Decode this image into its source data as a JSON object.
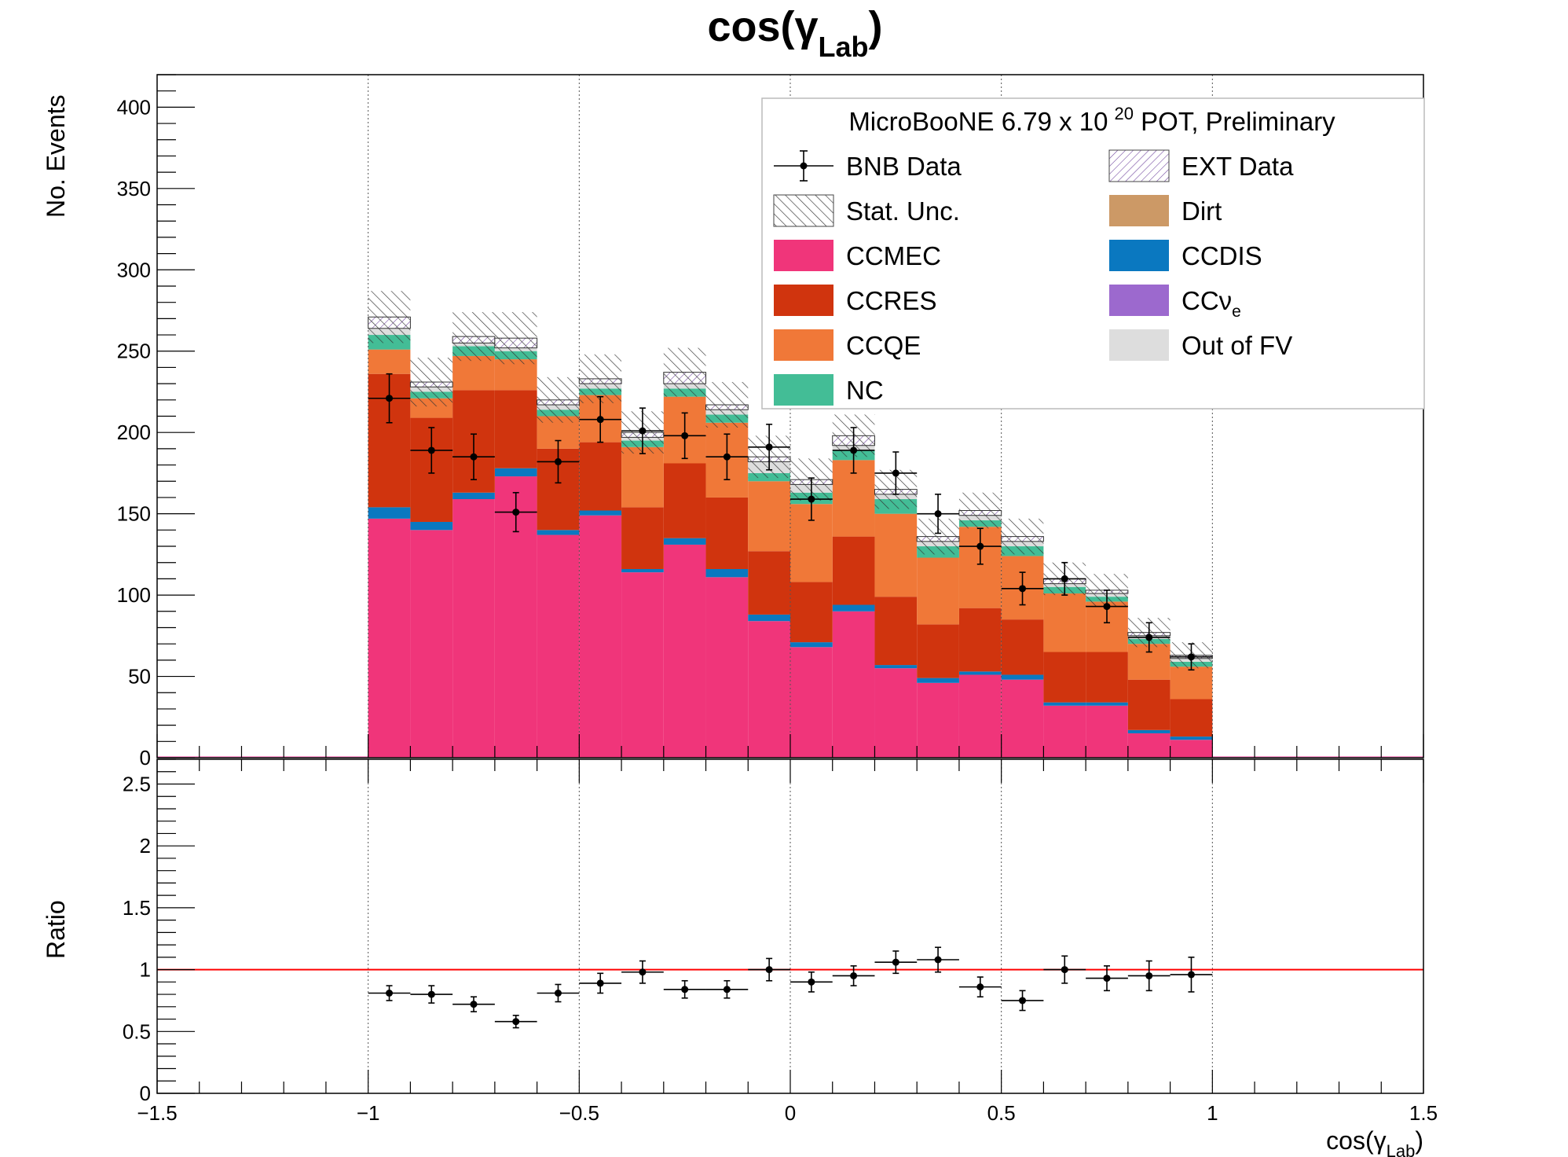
{
  "title": "cos(γ",
  "title_sub": "Lab",
  "title_close": ")",
  "xlabel": "cos(γ",
  "xlabel_sub": "Lab",
  "xlabel_close": ")",
  "legend": {
    "header_prefix": "MicroBooNE 6.79 x 10",
    "header_exp": "20",
    "header_suffix": " POT, Preliminary",
    "entries": [
      {
        "key": "data",
        "label": "BNB Data",
        "kind": "marker"
      },
      {
        "key": "ext",
        "label": "EXT Data",
        "kind": "hatch-ext"
      },
      {
        "key": "stat",
        "label": "Stat. Unc.",
        "kind": "hatch-stat"
      },
      {
        "key": "dirt",
        "label": "Dirt",
        "color": "#cc9966"
      },
      {
        "key": "ccmec",
        "label": "CCMEC",
        "color": "#f0357a"
      },
      {
        "key": "ccdis",
        "label": "CCDIS",
        "color": "#0a78c0"
      },
      {
        "key": "ccres",
        "label": "CCRES",
        "color": "#d0340e"
      },
      {
        "key": "ccnue",
        "label": "CCν",
        "label_sub": "e",
        "color": "#9c69ce"
      },
      {
        "key": "ccqe",
        "label": "CCQE",
        "color": "#f07838"
      },
      {
        "key": "outfv",
        "label": "Out of FV",
        "color": "#dddddd"
      },
      {
        "key": "nc",
        "label": "NC",
        "color": "#43bd96"
      }
    ]
  },
  "chart_data": [
    {
      "type": "bar",
      "stacked": true,
      "ylabel": "No. Events",
      "xlim": [
        -1.5,
        1.5
      ],
      "ylim": [
        0,
        420
      ],
      "yticks": [
        0,
        50,
        100,
        150,
        200,
        250,
        300,
        350,
        400
      ],
      "grid": "vertical",
      "legend_position": "top-right",
      "bin_edges": [
        -1.0,
        -0.9,
        -0.8,
        -0.7,
        -0.6,
        -0.5,
        -0.4,
        -0.3,
        -0.2,
        -0.1,
        0.0,
        0.1,
        0.2,
        0.3,
        0.4,
        0.5,
        0.6,
        0.7,
        0.8,
        0.9,
        1.0
      ],
      "series": [
        {
          "name": "CCMEC",
          "color": "#f0357a",
          "values": [
            147,
            140,
            159,
            173,
            137,
            149,
            114,
            131,
            111,
            84,
            68,
            90,
            55,
            46,
            51,
            48,
            32,
            32,
            15,
            11
          ]
        },
        {
          "name": "CCDIS",
          "color": "#0a78c0",
          "values": [
            7,
            5,
            4,
            5,
            3,
            3,
            2,
            4,
            5,
            4,
            3,
            4,
            2,
            3,
            2,
            3,
            2,
            2,
            2,
            2
          ]
        },
        {
          "name": "CCRES",
          "color": "#d0340e",
          "values": [
            82,
            64,
            63,
            48,
            50,
            42,
            38,
            46,
            44,
            39,
            37,
            42,
            42,
            33,
            39,
            34,
            31,
            31,
            31,
            23
          ]
        },
        {
          "name": "CCQE",
          "color": "#f07838",
          "values": [
            15,
            12,
            21,
            19,
            20,
            29,
            37,
            41,
            46,
            43,
            48,
            47,
            51,
            41,
            50,
            39,
            36,
            31,
            22,
            20
          ]
        },
        {
          "name": "NC",
          "color": "#43bd96",
          "values": [
            9,
            4,
            6,
            5,
            4,
            4,
            4,
            5,
            5,
            5,
            7,
            6,
            9,
            7,
            4,
            6,
            4,
            3,
            3,
            3
          ]
        },
        {
          "name": "Out of FV",
          "color": "#dddddd",
          "values": [
            4,
            3,
            2,
            2,
            3,
            3,
            2,
            3,
            3,
            7,
            5,
            3,
            3,
            3,
            3,
            3,
            2,
            2,
            2,
            2
          ]
        },
        {
          "name": "CCν",
          "color": "#9c69ce",
          "values": [
            0,
            0,
            0,
            0,
            0,
            0,
            0,
            0,
            0,
            0,
            0,
            0,
            0,
            0,
            0,
            0,
            0,
            0,
            0,
            0
          ]
        },
        {
          "name": "Dirt",
          "color": "#cc9966",
          "values": [
            0,
            0,
            0,
            0,
            0,
            0,
            0,
            0,
            0,
            0,
            0,
            0,
            0,
            0,
            0,
            0,
            0,
            0,
            0,
            0
          ]
        },
        {
          "name": "EXT Data",
          "color": "#ffffff",
          "values": [
            7,
            3,
            4,
            6,
            3,
            3,
            3,
            7,
            3,
            3,
            3,
            6,
            3,
            3,
            3,
            3,
            3,
            2,
            2,
            2
          ]
        }
      ],
      "stat_unc_halfwidth": [
        16,
        15,
        15,
        16,
        14,
        15,
        13,
        15,
        14,
        13,
        13,
        13,
        12,
        11,
        11,
        11,
        10,
        10,
        9,
        8
      ],
      "data_points": {
        "name": "BNB Data",
        "x": [
          -0.95,
          -0.85,
          -0.75,
          -0.65,
          -0.55,
          -0.45,
          -0.35,
          -0.25,
          -0.15,
          -0.05,
          0.05,
          0.15,
          0.25,
          0.35,
          0.45,
          0.55,
          0.65,
          0.75,
          0.85,
          0.95
        ],
        "y": [
          221,
          189,
          185,
          151,
          182,
          208,
          201,
          198,
          185,
          191,
          159,
          189,
          175,
          150,
          130,
          104,
          110,
          93,
          74,
          62
        ],
        "yerr": [
          15,
          14,
          14,
          12,
          13,
          14,
          14,
          14,
          14,
          14,
          13,
          14,
          13,
          12,
          11,
          10,
          10,
          10,
          9,
          8
        ],
        "xerr": 0.05
      }
    },
    {
      "type": "scatter",
      "ylabel": "Ratio",
      "xlabel": "cos(γLab)",
      "xlim": [
        -1.5,
        1.5
      ],
      "ylim": [
        0,
        2.7
      ],
      "yticks": [
        0,
        0.5,
        1,
        1.5,
        2,
        2.5
      ],
      "xticks": [
        -1.5,
        -1,
        -0.5,
        0,
        0.5,
        1,
        1.5
      ],
      "xtick_labels": [
        "−1.5",
        "−1",
        "−0.5",
        "0",
        "0.5",
        "1",
        "1.5"
      ],
      "reference_line": {
        "y": 1,
        "color": "#ff0000"
      },
      "x": [
        -0.95,
        -0.85,
        -0.75,
        -0.65,
        -0.55,
        -0.45,
        -0.35,
        -0.25,
        -0.15,
        -0.05,
        0.05,
        0.15,
        0.25,
        0.35,
        0.45,
        0.55,
        0.65,
        0.75,
        0.85,
        0.95
      ],
      "y": [
        0.81,
        0.8,
        0.72,
        0.58,
        0.81,
        0.89,
        0.98,
        0.84,
        0.84,
        1.0,
        0.9,
        0.95,
        1.06,
        1.08,
        0.86,
        0.75,
        1.0,
        0.93,
        0.95,
        0.96
      ],
      "yerr": [
        0.06,
        0.07,
        0.06,
        0.05,
        0.07,
        0.08,
        0.09,
        0.07,
        0.07,
        0.09,
        0.08,
        0.08,
        0.09,
        0.1,
        0.08,
        0.08,
        0.11,
        0.1,
        0.12,
        0.14
      ],
      "xerr": 0.05
    }
  ]
}
